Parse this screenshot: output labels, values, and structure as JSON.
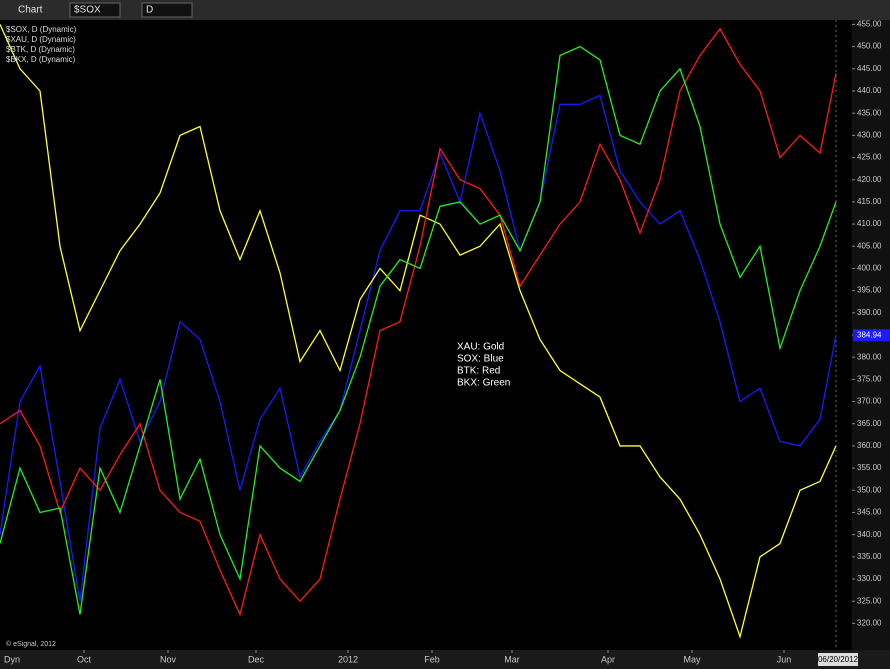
{
  "toolbar": {
    "title": "Chart",
    "symbol": "$SOX",
    "interval": "D"
  },
  "footer": {
    "mode": "Dyn",
    "copyright": "© eSignal, 2012"
  },
  "chart_data": {
    "type": "line",
    "annotations": [
      "XAU:  Gold",
      "SOX:  Blue",
      "BTK:  Red",
      "BKX:  Green"
    ],
    "x_end_label": "06/20/2012",
    "x": [
      0,
      5,
      10,
      15,
      20,
      25,
      30,
      35,
      40,
      45,
      50,
      55,
      60,
      65,
      70,
      75,
      80,
      85,
      90,
      95,
      100,
      105,
      110,
      115,
      120,
      125,
      130,
      135,
      140,
      145,
      150,
      155,
      160,
      165,
      170,
      175,
      180,
      185,
      190,
      195,
      200,
      205,
      209
    ],
    "xlim": [
      0,
      213
    ],
    "xticks": [
      {
        "value": 21,
        "label": "Oct"
      },
      {
        "value": 42,
        "label": "Nov"
      },
      {
        "value": 64,
        "label": "Dec"
      },
      {
        "value": 87,
        "label": "2012"
      },
      {
        "value": 108,
        "label": "Feb"
      },
      {
        "value": 128,
        "label": "Mar"
      },
      {
        "value": 152,
        "label": "Apr"
      },
      {
        "value": 173,
        "label": "May"
      },
      {
        "value": 196,
        "label": "Jun"
      }
    ],
    "ylim": [
      314,
      456
    ],
    "yticks": [
      {
        "value": 320,
        "label": "320.00"
      },
      {
        "value": 325,
        "label": "325.00"
      },
      {
        "value": 330,
        "label": "330.00"
      },
      {
        "value": 335,
        "label": "335.00"
      },
      {
        "value": 340,
        "label": "340.00"
      },
      {
        "value": 345,
        "label": "345.00"
      },
      {
        "value": 350,
        "label": "350.00"
      },
      {
        "value": 355,
        "label": "355.00"
      },
      {
        "value": 360,
        "label": "360.00"
      },
      {
        "value": 365,
        "label": "365.00"
      },
      {
        "value": 370,
        "label": "370.00"
      },
      {
        "value": 375,
        "label": "375.00"
      },
      {
        "value": 380,
        "label": "380.00"
      },
      {
        "value": 385,
        "label": "385.00"
      },
      {
        "value": 390,
        "label": "390.00"
      },
      {
        "value": 395,
        "label": "395.00"
      },
      {
        "value": 400,
        "label": "400.00"
      },
      {
        "value": 405,
        "label": "405.00"
      },
      {
        "value": 410,
        "label": "410.00"
      },
      {
        "value": 415,
        "label": "415.00"
      },
      {
        "value": 420,
        "label": "420.00"
      },
      {
        "value": 425,
        "label": "425.00"
      },
      {
        "value": 430,
        "label": "430.00"
      },
      {
        "value": 435,
        "label": "435.00"
      },
      {
        "value": 440,
        "label": "440.00"
      },
      {
        "value": 445,
        "label": "445.00"
      },
      {
        "value": 450,
        "label": "450.00"
      },
      {
        "value": 455,
        "label": "455.00"
      }
    ],
    "series": [
      {
        "name": "$SOX, D (Dynamic)",
        "color": "#1a1aff",
        "values": [
          340,
          370,
          378,
          352,
          325,
          364,
          375,
          361,
          370,
          388,
          384,
          370,
          350,
          366,
          373,
          353,
          361,
          368,
          386,
          404,
          413,
          413,
          426,
          415,
          435,
          422,
          404,
          415,
          437,
          437,
          439,
          422,
          415,
          410,
          413,
          402,
          388,
          370,
          373,
          361,
          360,
          366,
          384.94
        ]
      },
      {
        "name": "$XAU, D (Dynamic)",
        "color": "#ffff33",
        "values": [
          455,
          445,
          440,
          405,
          386,
          395,
          404,
          410,
          417,
          430,
          432,
          413,
          402,
          413,
          399,
          379,
          386,
          377,
          393,
          400,
          395,
          412,
          410,
          403,
          405,
          410,
          395,
          384,
          377,
          374,
          371,
          360,
          360,
          353,
          348,
          340,
          330,
          317,
          335,
          338,
          350,
          352,
          360
        ]
      },
      {
        "name": "$BTK, D (Dynamic)",
        "color": "#ff1a1a",
        "values": [
          365,
          368,
          360,
          345,
          355,
          350,
          358,
          365,
          350,
          345,
          343,
          332,
          322,
          340,
          330,
          325,
          330,
          348,
          365,
          386,
          388,
          405,
          427,
          420,
          418,
          412,
          396,
          403,
          410,
          415,
          428,
          420,
          408,
          420,
          440,
          448,
          454,
          446,
          440,
          425,
          430,
          426,
          444
        ]
      },
      {
        "name": "$BKX, D (Dynamic)",
        "color": "#22ee22",
        "values": [
          338,
          355,
          345,
          346,
          322,
          355,
          345,
          360,
          375,
          348,
          357,
          340,
          330,
          360,
          355,
          352,
          360,
          368,
          380,
          396,
          402,
          400,
          414,
          415,
          410,
          412,
          404,
          415,
          448,
          450,
          447,
          430,
          428,
          440,
          445,
          432,
          410,
          398,
          405,
          382,
          395,
          405,
          415
        ]
      }
    ]
  }
}
